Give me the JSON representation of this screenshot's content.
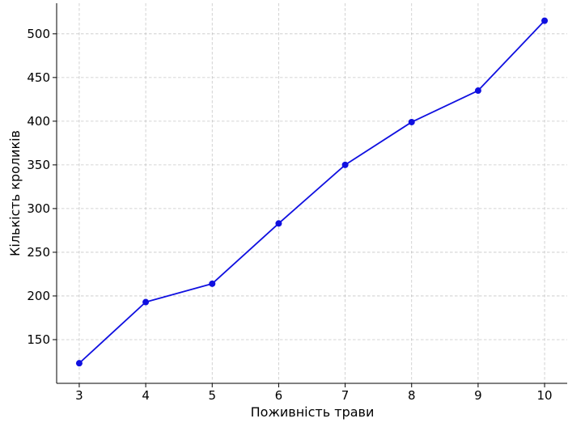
{
  "chart_data": {
    "type": "line",
    "title": "",
    "xlabel": "Поживність трави",
    "ylabel": "Кількість кроликів",
    "x": [
      3,
      4,
      5,
      6,
      7,
      8,
      9,
      10
    ],
    "series": [
      {
        "values": [
          123,
          193,
          214,
          283,
          350,
          399,
          435,
          515
        ],
        "color": "#1010e0",
        "marker": "circle"
      }
    ],
    "xticks": [
      3,
      4,
      5,
      6,
      7,
      8,
      9,
      10
    ],
    "yticks": [
      150,
      200,
      250,
      300,
      350,
      400,
      450,
      500
    ],
    "xlim": [
      2.66,
      10.34
    ],
    "ylim": [
      100,
      535
    ],
    "grid": true,
    "legend": "none"
  }
}
